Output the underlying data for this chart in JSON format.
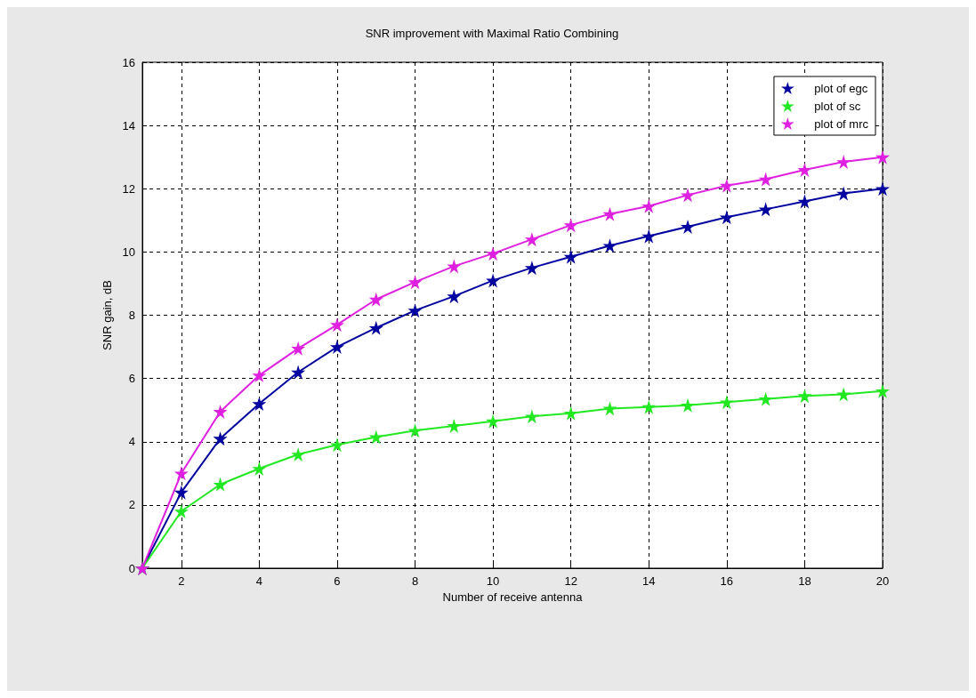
{
  "chart_data": {
    "type": "line",
    "title": "SNR improvement with Maximal Ratio Combining",
    "xlabel": "Number of receive antenna",
    "ylabel": "SNR gain, dB",
    "x": [
      1,
      2,
      3,
      4,
      5,
      6,
      7,
      8,
      9,
      10,
      11,
      12,
      13,
      14,
      15,
      16,
      17,
      18,
      19,
      20
    ],
    "series": [
      {
        "name": "plot of egc",
        "color": "#0000a0",
        "values": [
          0,
          2.4,
          4.1,
          5.2,
          6.2,
          7.0,
          7.6,
          8.15,
          8.6,
          9.1,
          9.5,
          9.85,
          10.2,
          10.5,
          10.8,
          11.1,
          11.35,
          11.6,
          11.85,
          12.0
        ]
      },
      {
        "name": "plot of sc",
        "color": "#22e822",
        "values": [
          0,
          1.8,
          2.65,
          3.15,
          3.6,
          3.9,
          4.15,
          4.35,
          4.5,
          4.65,
          4.8,
          4.9,
          5.05,
          5.1,
          5.15,
          5.25,
          5.35,
          5.45,
          5.5,
          5.6
        ]
      },
      {
        "name": "plot of mrc",
        "color": "#e020e0",
        "values": [
          0,
          3.0,
          4.95,
          6.1,
          6.95,
          7.7,
          8.5,
          9.05,
          9.55,
          9.95,
          10.4,
          10.85,
          11.2,
          11.45,
          11.8,
          12.1,
          12.3,
          12.6,
          12.85,
          13.0
        ]
      }
    ],
    "xlim": [
      1,
      20
    ],
    "xticks": [
      2,
      4,
      6,
      8,
      10,
      12,
      14,
      16,
      18,
      20
    ],
    "ylim": [
      0,
      16
    ],
    "yticks": [
      0,
      2,
      4,
      6,
      8,
      10,
      12,
      14,
      16
    ],
    "grid": true,
    "legend": "top right",
    "marker": "star",
    "line_style": "solid"
  }
}
